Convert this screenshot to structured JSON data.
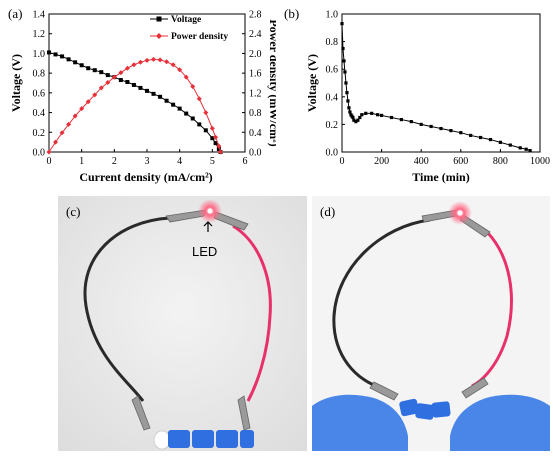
{
  "chart_data": [
    {
      "panel": "(a)",
      "type": "line",
      "xlabel": "Current density (mA/cm²)",
      "ylabel_left": "Voltage (V)",
      "ylabel_right": "Power density (mW/cm²)",
      "xlim": [
        0,
        6
      ],
      "ylim_left": [
        0,
        1.4
      ],
      "ylim_right": [
        0,
        2.8
      ],
      "x_ticks": [
        "0",
        "1",
        "2",
        "3",
        "4",
        "5",
        "6"
      ],
      "y_ticks_left": [
        "0.0",
        "0.2",
        "0.4",
        "0.6",
        "0.8",
        "1.0",
        "1.2",
        "1.4"
      ],
      "y_ticks_right": [
        "0.0",
        "0.4",
        "0.8",
        "1.2",
        "1.6",
        "2.0",
        "2.4",
        "2.8"
      ],
      "legend_position": "top-right",
      "series": [
        {
          "name": "Voltage",
          "axis": "left",
          "color": "#000000",
          "marker": "square",
          "points": [
            [
              0,
              1.01
            ],
            [
              0.2,
              0.99
            ],
            [
              0.4,
              0.97
            ],
            [
              0.6,
              0.94
            ],
            [
              0.8,
              0.91
            ],
            [
              1.0,
              0.88
            ],
            [
              1.2,
              0.85
            ],
            [
              1.4,
              0.83
            ],
            [
              1.6,
              0.81
            ],
            [
              1.8,
              0.78
            ],
            [
              2.0,
              0.76
            ],
            [
              2.2,
              0.73
            ],
            [
              2.4,
              0.71
            ],
            [
              2.6,
              0.68
            ],
            [
              2.8,
              0.65
            ],
            [
              3.0,
              0.62
            ],
            [
              3.2,
              0.59
            ],
            [
              3.4,
              0.56
            ],
            [
              3.6,
              0.52
            ],
            [
              3.8,
              0.48
            ],
            [
              4.0,
              0.44
            ],
            [
              4.2,
              0.39
            ],
            [
              4.4,
              0.34
            ],
            [
              4.6,
              0.28
            ],
            [
              4.8,
              0.22
            ],
            [
              5.0,
              0.14
            ],
            [
              5.1,
              0.09
            ],
            [
              5.2,
              0.03
            ],
            [
              5.25,
              0.0
            ]
          ]
        },
        {
          "name": "Power density",
          "axis": "right",
          "color": "#e8303a",
          "marker": "diamond",
          "points": [
            [
              0,
              0
            ],
            [
              0.2,
              0.2
            ],
            [
              0.4,
              0.39
            ],
            [
              0.6,
              0.56
            ],
            [
              0.8,
              0.73
            ],
            [
              1.0,
              0.88
            ],
            [
              1.2,
              1.02
            ],
            [
              1.4,
              1.16
            ],
            [
              1.6,
              1.3
            ],
            [
              1.8,
              1.41
            ],
            [
              2.0,
              1.52
            ],
            [
              2.2,
              1.61
            ],
            [
              2.4,
              1.7
            ],
            [
              2.6,
              1.77
            ],
            [
              2.8,
              1.82
            ],
            [
              3.0,
              1.86
            ],
            [
              3.2,
              1.88
            ],
            [
              3.4,
              1.87
            ],
            [
              3.6,
              1.83
            ],
            [
              3.8,
              1.77
            ],
            [
              4.0,
              1.67
            ],
            [
              4.2,
              1.52
            ],
            [
              4.4,
              1.33
            ],
            [
              4.6,
              1.08
            ],
            [
              4.8,
              0.8
            ],
            [
              5.0,
              0.48
            ],
            [
              5.1,
              0.3
            ],
            [
              5.2,
              0.12
            ],
            [
              5.25,
              0.0
            ]
          ]
        }
      ]
    },
    {
      "panel": "(b)",
      "type": "line",
      "xlabel": "Time (min)",
      "ylabel": "Voltage (V)",
      "xlim": [
        0,
        1000
      ],
      "ylim": [
        0.0,
        1.0
      ],
      "x_ticks": [
        "0",
        "200",
        "400",
        "600",
        "800",
        "1000"
      ],
      "y_ticks": [
        "0.0",
        "0.2",
        "0.4",
        "0.6",
        "0.8",
        "1.0"
      ],
      "series": [
        {
          "name": "",
          "color": "#000000",
          "marker": "square",
          "points": [
            [
              0,
              0.93
            ],
            [
              5,
              0.75
            ],
            [
              10,
              0.66
            ],
            [
              15,
              0.58
            ],
            [
              20,
              0.5
            ],
            [
              25,
              0.43
            ],
            [
              30,
              0.37
            ],
            [
              35,
              0.32
            ],
            [
              40,
              0.29
            ],
            [
              45,
              0.27
            ],
            [
              50,
              0.26
            ],
            [
              55,
              0.25
            ],
            [
              60,
              0.23
            ],
            [
              70,
              0.22
            ],
            [
              80,
              0.23
            ],
            [
              90,
              0.25
            ],
            [
              100,
              0.27
            ],
            [
              120,
              0.28
            ],
            [
              150,
              0.28
            ],
            [
              180,
              0.27
            ],
            [
              200,
              0.265
            ],
            [
              250,
              0.25
            ],
            [
              300,
              0.235
            ],
            [
              350,
              0.22
            ],
            [
              400,
              0.2
            ],
            [
              450,
              0.185
            ],
            [
              500,
              0.17
            ],
            [
              550,
              0.155
            ],
            [
              600,
              0.14
            ],
            [
              650,
              0.12
            ],
            [
              700,
              0.105
            ],
            [
              750,
              0.09
            ],
            [
              800,
              0.07
            ],
            [
              850,
              0.05
            ],
            [
              900,
              0.03
            ],
            [
              930,
              0.02
            ],
            [
              950,
              0.01
            ]
          ]
        }
      ]
    }
  ],
  "photos": {
    "c": {
      "label": "(c)",
      "led_text": "LED"
    },
    "d": {
      "label": "(d)"
    }
  },
  "colors": {
    "wire_black": "#2a2a2a",
    "wire_red": "#e8306a",
    "led_glow": "#ff4a6a",
    "battery_blue": "#2f6fe0",
    "glove_blue": "#4a86e8",
    "background_c": "#eaeaea",
    "background_d": "#f4f4f4"
  }
}
